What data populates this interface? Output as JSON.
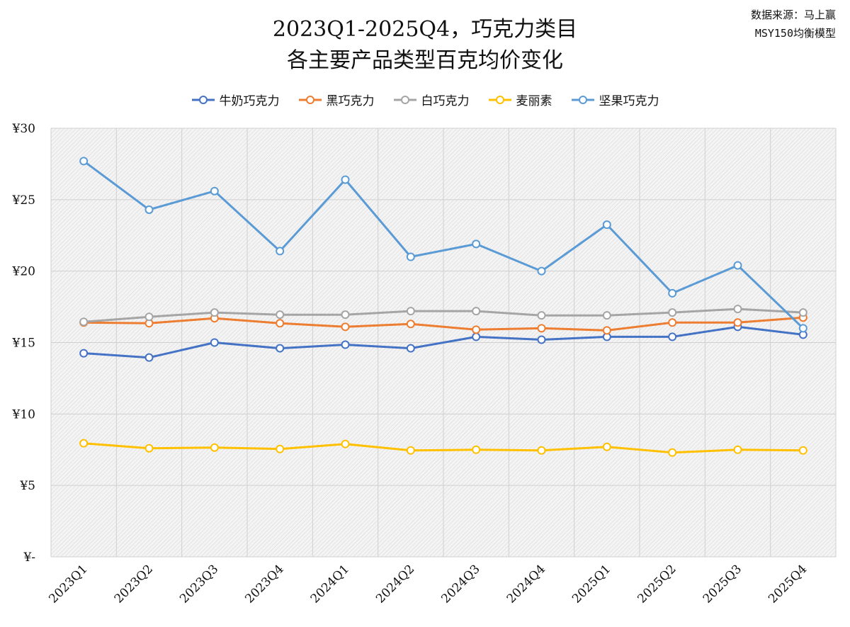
{
  "title": {
    "line1": "2023Q1-2025Q4，巧克力类目",
    "line2": "各主要产品类型百克均价变化"
  },
  "source": {
    "line1": "数据来源：马上赢",
    "line2": "MSY150均衡模型"
  },
  "chart_data": {
    "type": "line",
    "title": "2023Q1-2025Q4，巧克力类目 各主要产品类型百克均价变化",
    "xlabel": "",
    "ylabel": "",
    "categories": [
      "2023Q1",
      "2023Q2",
      "2023Q3",
      "2023Q4",
      "2024Q1",
      "2024Q2",
      "2024Q3",
      "2024Q4",
      "2025Q1",
      "2025Q2",
      "2025Q3",
      "2025Q4"
    ],
    "ylim": [
      0,
      30
    ],
    "y_ticks": [
      0,
      5,
      10,
      15,
      20,
      25,
      30
    ],
    "y_tick_labels": [
      "¥-",
      "¥5",
      "¥10",
      "¥15",
      "¥20",
      "¥25",
      "¥30"
    ],
    "grid": true,
    "legend": "top",
    "series": [
      {
        "name": "牛奶巧克力",
        "color": "#4472C4",
        "values": [
          14.25,
          13.95,
          15.0,
          14.6,
          14.85,
          14.6,
          15.4,
          15.2,
          15.4,
          15.4,
          16.1,
          15.55
        ]
      },
      {
        "name": "黑巧克力",
        "color": "#ED7D31",
        "values": [
          16.4,
          16.35,
          16.7,
          16.35,
          16.1,
          16.3,
          15.9,
          16.0,
          15.85,
          16.4,
          16.4,
          16.75
        ]
      },
      {
        "name": "白巧克力",
        "color": "#A5A5A5",
        "values": [
          16.45,
          16.8,
          17.1,
          16.95,
          16.95,
          17.2,
          17.2,
          16.9,
          16.9,
          17.1,
          17.35,
          17.1
        ]
      },
      {
        "name": "麦丽素",
        "color": "#FFC000",
        "values": [
          7.95,
          7.6,
          7.65,
          7.55,
          7.9,
          7.45,
          7.5,
          7.45,
          7.7,
          7.3,
          7.5,
          7.45
        ]
      },
      {
        "name": "坚果巧克力",
        "color": "#5B9BD5",
        "values": [
          27.7,
          24.3,
          25.6,
          21.4,
          26.4,
          21.0,
          21.9,
          20.0,
          23.25,
          18.45,
          20.4,
          16.0
        ]
      }
    ]
  }
}
